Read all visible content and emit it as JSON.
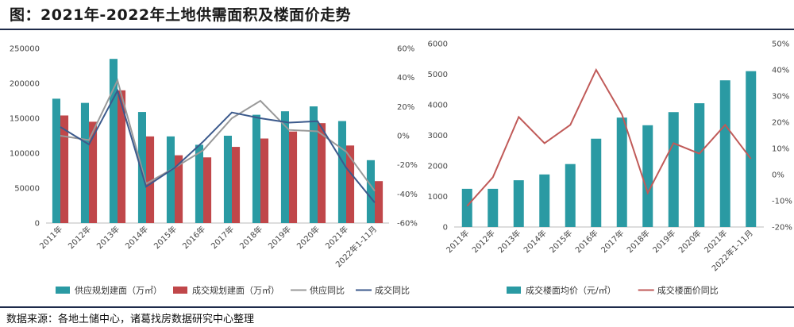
{
  "page": {
    "title": "图：2021年-2022年土地供需面积及楼面价走势",
    "source": "数据来源：各地土储中心，诸葛找房数据研究中心整理"
  },
  "colors": {
    "teal": "#2a9aa3",
    "red": "#c0474a",
    "gray": "#999999",
    "navy": "#3c5a8c",
    "salmon": "#c05a58",
    "axis": "#bbbbbb"
  },
  "chart_data": [
    {
      "type": "bar",
      "categories": [
        "2011年",
        "2012年",
        "2013年",
        "2014年",
        "2015年",
        "2016年",
        "2017年",
        "2018年",
        "2019年",
        "2020年",
        "2021年",
        "2022年1-11月"
      ],
      "series": [
        {
          "name": "供应规划建面（万㎡）",
          "kind": "bar",
          "axis": "left",
          "values": [
            178000,
            172000,
            235000,
            159000,
            124000,
            112000,
            125000,
            155000,
            160000,
            167000,
            146000,
            90000
          ]
        },
        {
          "name": "成交规划建面（万㎡）",
          "kind": "bar",
          "axis": "left",
          "values": [
            154000,
            145000,
            190000,
            124000,
            97000,
            94000,
            109000,
            121000,
            131000,
            143000,
            111000,
            60000
          ]
        },
        {
          "name": "供应同比",
          "kind": "line",
          "axis": "right",
          "values": [
            0,
            -3,
            38,
            -33,
            -22,
            -10,
            12,
            24,
            4,
            3,
            -11,
            -38
          ]
        },
        {
          "name": "成交同比",
          "kind": "line",
          "axis": "right",
          "values": [
            6,
            -6,
            31,
            -35,
            -22,
            -4,
            16,
            12,
            9,
            10,
            -22,
            -46
          ]
        }
      ],
      "y_left": {
        "min": 0,
        "max": 250000,
        "ticks": [
          "0",
          "50000",
          "100000",
          "150000",
          "200000",
          "250000"
        ]
      },
      "y_right": {
        "min": -60,
        "max": 60,
        "ticks": [
          "-60%",
          "-40%",
          "-20%",
          "0%",
          "20%",
          "40%",
          "60%"
        ]
      },
      "legend": [
        "供应规划建面（万㎡）",
        "成交规划建面（万㎡）",
        "供应同比",
        "成交同比"
      ]
    },
    {
      "type": "bar",
      "categories": [
        "2011年",
        "2012年",
        "2013年",
        "2014年",
        "2015年",
        "2016年",
        "2017年",
        "2018年",
        "2019年",
        "2020年",
        "2021年",
        "2022年1-11月"
      ],
      "series": [
        {
          "name": "成交楼面均价（元/㎡）",
          "kind": "bar",
          "axis": "left",
          "values": [
            1250,
            1250,
            1530,
            1720,
            2060,
            2890,
            3580,
            3330,
            3760,
            4050,
            4800,
            5100
          ]
        },
        {
          "name": "成交楼面价同比",
          "kind": "line",
          "axis": "right",
          "values": [
            -12,
            -1,
            22,
            12,
            19,
            40,
            23,
            -7,
            12,
            8,
            19,
            6
          ]
        }
      ],
      "y_left": {
        "min": 0,
        "max": 6000,
        "ticks": [
          "0",
          "1000",
          "2000",
          "3000",
          "4000",
          "5000",
          "6000"
        ]
      },
      "y_right": {
        "min": -20,
        "max": 50,
        "ticks": [
          "-20%",
          "-10%",
          "0%",
          "10%",
          "20%",
          "30%",
          "40%",
          "50%"
        ]
      },
      "legend": [
        "成交楼面均价（元/㎡）",
        "成交楼面价同比"
      ]
    }
  ]
}
